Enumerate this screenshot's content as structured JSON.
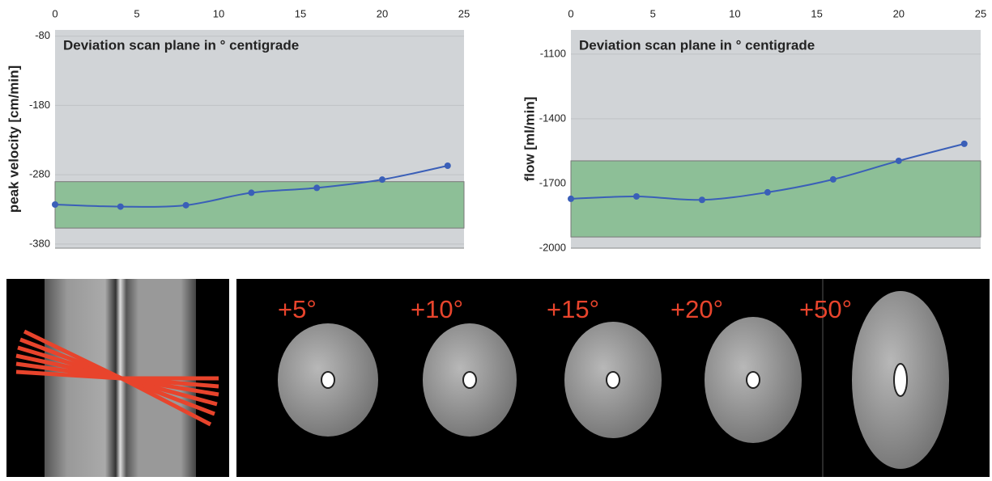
{
  "chart_data": [
    {
      "type": "line",
      "annotation": "Deviation scan plane in ° centigrade",
      "ylabel": "peak velocity [cm/min]",
      "x": [
        0,
        4,
        8,
        12,
        16,
        20,
        24
      ],
      "series": [
        {
          "color": "#3a5fb8",
          "values": [
            -323,
            -326,
            -324,
            -306,
            -299,
            -287,
            -267
          ]
        }
      ],
      "xlim": [
        0,
        25
      ],
      "xticks": [
        0,
        5,
        10,
        15,
        20,
        25
      ],
      "ylim": [
        -386,
        -71
      ],
      "yticks": [
        -80,
        -180,
        -280,
        -380
      ],
      "band": [
        -357,
        -290
      ],
      "band_color": "#8dbf97",
      "grid": true
    },
    {
      "type": "line",
      "annotation": "Deviation scan plane in ° centigrade",
      "ylabel": "flow [ml/min]",
      "x": [
        0,
        4,
        8,
        12,
        16,
        20,
        24
      ],
      "series": [
        {
          "color": "#3a5fb8",
          "values": [
            -1771,
            -1760,
            -1776,
            -1741,
            -1681,
            -1595,
            -1516
          ]
        }
      ],
      "xlim": [
        0,
        25
      ],
      "xticks": [
        0,
        5,
        10,
        15,
        20,
        25
      ],
      "ylim": [
        -2000,
        -988
      ],
      "yticks": [
        -1100,
        -1400,
        -1700,
        -2000
      ],
      "band": [
        -1948,
        -1595
      ],
      "band_color": "#8dbf97",
      "grid": true
    }
  ],
  "image_labels": [
    "+5°",
    "+10°",
    "+15°",
    "+20°",
    "+50°"
  ]
}
